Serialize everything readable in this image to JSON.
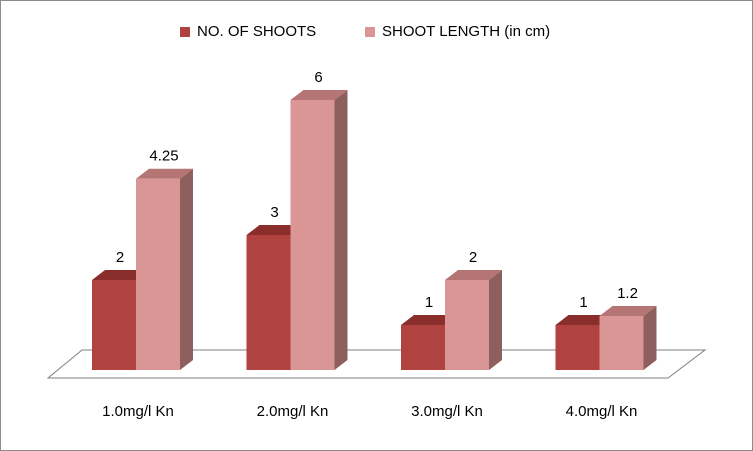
{
  "chart_data": {
    "type": "bar3d",
    "categories": [
      "1.0mg/l Kn",
      "2.0mg/l Kn",
      "3.0mg/l Kn",
      "4.0mg/l Kn"
    ],
    "series": [
      {
        "name": "NO. OF SHOOTS",
        "color": "#b0423f",
        "top_color": "#8a2e2c",
        "side_color": "#7c3432",
        "values": [
          2,
          3,
          1,
          1
        ]
      },
      {
        "name": "SHOOT LENGTH (in cm)",
        "color": "#d99694",
        "top_color": "#b47574",
        "side_color": "#8d5f5e",
        "values": [
          4.25,
          6,
          2,
          1.2
        ]
      }
    ],
    "legend": "top"
  }
}
